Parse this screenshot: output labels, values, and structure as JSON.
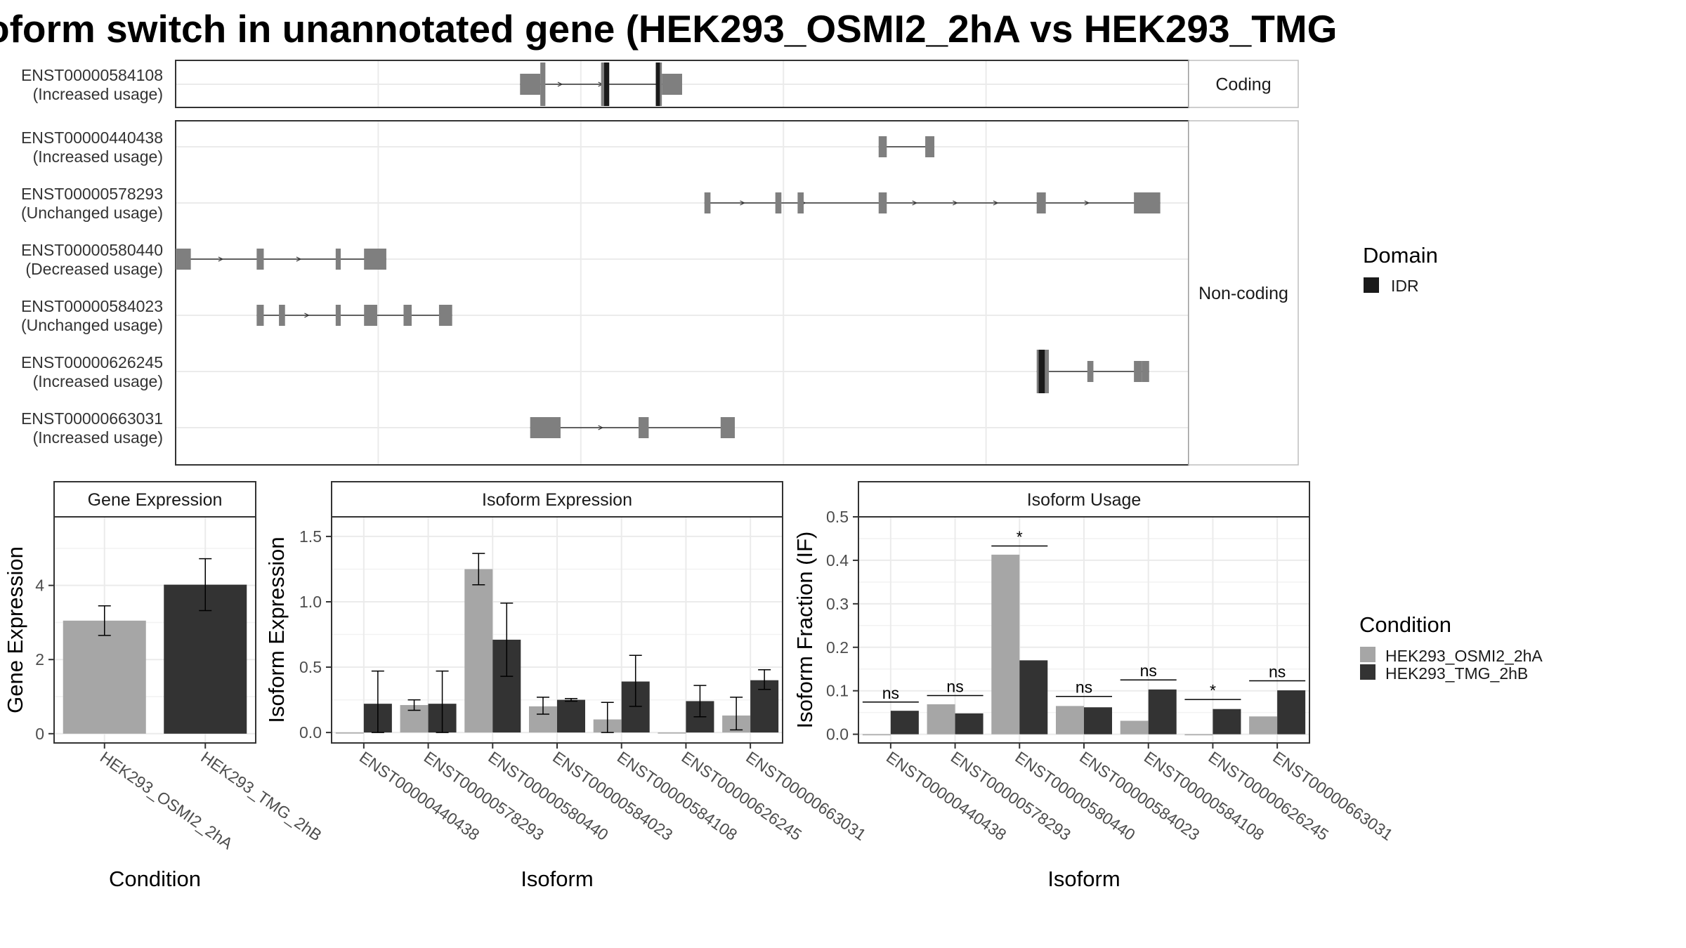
{
  "title": "oform switch in unannotated gene (HEK293_OSMI2_2hA vs HEK293_TMG",
  "colors": {
    "exon": "#7f7f7f",
    "idr": "#1a1a1a",
    "cond_a": "#a6a6a6",
    "cond_b": "#333333",
    "grid": "#ebebeb",
    "strip_bg": "#ffffff",
    "frame": "#333333"
  },
  "structure": {
    "x_range": [
      0,
      1000
    ],
    "facets": [
      {
        "label": "Coding",
        "isoforms": [
          "ENST00000584108"
        ]
      },
      {
        "label": "Non-coding",
        "isoforms": [
          "ENST00000440438",
          "ENST00000578293",
          "ENST00000580440",
          "ENST00000584023",
          "ENST00000626245",
          "ENST00000663031"
        ]
      }
    ],
    "isoforms": [
      {
        "id": "ENST00000584108",
        "usage": "(Increased usage)",
        "strand_arrows": [
          380,
          420
        ],
        "exons": [
          [
            340,
            360,
            "utr"
          ],
          [
            360,
            365,
            "cds"
          ],
          [
            420,
            428,
            "cds"
          ],
          [
            474,
            480,
            "cds"
          ],
          [
            480,
            500,
            "utr"
          ]
        ],
        "domains": [
          [
            423,
            428
          ],
          [
            474,
            478
          ]
        ]
      },
      {
        "id": "ENST00000440438",
        "usage": "(Increased usage)",
        "strand_arrows": [],
        "exons": [
          [
            694,
            702,
            "utr"
          ],
          [
            740,
            749,
            "utr"
          ]
        ],
        "domains": []
      },
      {
        "id": "ENST00000578293",
        "usage": "(Unchanged usage)",
        "strand_arrows": [
          560,
          620,
          730,
          770,
          810,
          900
        ],
        "exons": [
          [
            522,
            528,
            "utr"
          ],
          [
            592,
            598,
            "utr"
          ],
          [
            614,
            620,
            "utr"
          ],
          [
            694,
            702,
            "utr"
          ],
          [
            850,
            859,
            "utr"
          ],
          [
            946,
            972,
            "utr"
          ]
        ],
        "domains": []
      },
      {
        "id": "ENST00000580440",
        "usage": "(Decreased usage)",
        "strand_arrows": [
          45,
          122,
          194
        ],
        "exons": [
          [
            0,
            15,
            "utr"
          ],
          [
            80,
            87,
            "utr"
          ],
          [
            158,
            163,
            "utr"
          ],
          [
            186,
            208,
            "utr"
          ]
        ],
        "domains": []
      },
      {
        "id": "ENST00000584023",
        "usage": "(Unchanged usage)",
        "strand_arrows": [
          130
        ],
        "exons": [
          [
            80,
            87,
            "utr"
          ],
          [
            102,
            108,
            "utr"
          ],
          [
            158,
            163,
            "utr"
          ],
          [
            186,
            199,
            "utr"
          ],
          [
            225,
            233,
            "utr"
          ],
          [
            260,
            273,
            "utr"
          ]
        ],
        "domains": []
      },
      {
        "id": "ENST00000626245",
        "usage": "(Increased usage)",
        "strand_arrows": [],
        "exons": [
          [
            850,
            862,
            "cds"
          ],
          [
            900,
            906,
            "utr"
          ],
          [
            946,
            954,
            "utr"
          ],
          [
            954,
            961,
            "utr"
          ]
        ],
        "domains": [
          [
            852,
            858
          ]
        ]
      },
      {
        "id": "ENST00000663031",
        "usage": "(Increased usage)",
        "strand_arrows": [
          420
        ],
        "exons": [
          [
            350,
            380,
            "utr"
          ],
          [
            457,
            467,
            "utr"
          ],
          [
            538,
            552,
            "utr"
          ]
        ],
        "domains": []
      }
    ]
  },
  "panels": {
    "gene": {
      "strip": "Gene Expression",
      "ylabel": "Gene Expression",
      "xlabel": "Condition"
    },
    "iso_exp": {
      "strip": "Isoform Expression",
      "ylabel": "Isoform Expression",
      "xlabel": "Isoform"
    },
    "iso_use": {
      "strip": "Isoform Usage",
      "ylabel": "Isoform Fraction (IF)",
      "xlabel": "Isoform"
    }
  },
  "legends": {
    "domain": {
      "title": "Domain",
      "items": [
        {
          "label": "IDR",
          "color": "#1a1a1a"
        }
      ]
    },
    "condition": {
      "title": "Condition",
      "items": [
        {
          "label": "HEK293_OSMI2_2hA",
          "color": "#a6a6a6"
        },
        {
          "label": "HEK293_TMG_2hB",
          "color": "#333333"
        }
      ]
    }
  },
  "chart_data": [
    {
      "type": "bar",
      "title": "Gene Expression",
      "xlabel": "Condition",
      "ylabel": "Gene Expression",
      "categories": [
        "HEK293_OSMI2_2hA",
        "HEK293_TMG_2hB"
      ],
      "values": [
        3.05,
        4.02
      ],
      "error": [
        [
          2.65,
          3.45
        ],
        [
          3.32,
          4.72
        ]
      ],
      "ylim": [
        -0.25,
        5.85
      ],
      "yticks": [
        0,
        2,
        4
      ],
      "grid": true
    },
    {
      "type": "bar",
      "title": "Isoform Expression",
      "xlabel": "Isoform",
      "ylabel": "Isoform Expression",
      "categories": [
        "ENST00000440438",
        "ENST00000578293",
        "ENST00000580440",
        "ENST00000584023",
        "ENST00000584108",
        "ENST00000626245",
        "ENST00000663031"
      ],
      "series": [
        {
          "name": "HEK293_OSMI2_2hA",
          "values": [
            0.0,
            0.21,
            1.25,
            0.2,
            0.1,
            0.0,
            0.13
          ],
          "error": [
            null,
            [
              0.17,
              0.25
            ],
            [
              1.13,
              1.37
            ],
            [
              0.14,
              0.27
            ],
            [
              0.0,
              0.23
            ],
            null,
            [
              0.02,
              0.27
            ]
          ]
        },
        {
          "name": "HEK293_TMG_2hB",
          "values": [
            0.22,
            0.22,
            0.71,
            0.25,
            0.39,
            0.24,
            0.4
          ],
          "error": [
            [
              0.0,
              0.47
            ],
            [
              0.0,
              0.47
            ],
            [
              0.43,
              0.99
            ],
            [
              0.24,
              0.26
            ],
            [
              0.2,
              0.59
            ],
            [
              0.12,
              0.36
            ],
            [
              0.33,
              0.48
            ]
          ]
        }
      ],
      "ylim": [
        -0.08,
        1.65
      ],
      "yticks": [
        0.0,
        0.5,
        1.0,
        1.5
      ],
      "grid": true
    },
    {
      "type": "bar",
      "title": "Isoform Usage",
      "xlabel": "Isoform",
      "ylabel": "Isoform Fraction (IF)",
      "categories": [
        "ENST00000440438",
        "ENST00000578293",
        "ENST00000580440",
        "ENST00000584023",
        "ENST00000584108",
        "ENST00000626245",
        "ENST00000663031"
      ],
      "series": [
        {
          "name": "HEK293_OSMI2_2hA",
          "values": [
            0.0,
            0.069,
            0.413,
            0.065,
            0.031,
            0.0,
            0.041
          ]
        },
        {
          "name": "HEK293_TMG_2hB",
          "values": [
            0.054,
            0.048,
            0.17,
            0.062,
            0.103,
            0.058,
            0.101
          ]
        }
      ],
      "significance": [
        "ns",
        "ns",
        "*",
        "ns",
        "ns",
        "*",
        "ns"
      ],
      "sig_y": [
        0.074,
        0.089,
        0.433,
        0.087,
        0.125,
        0.08,
        0.123
      ],
      "ylim": [
        -0.02,
        0.5
      ],
      "yticks": [
        0.0,
        0.1,
        0.2,
        0.3,
        0.4,
        0.5
      ],
      "grid": true
    }
  ]
}
